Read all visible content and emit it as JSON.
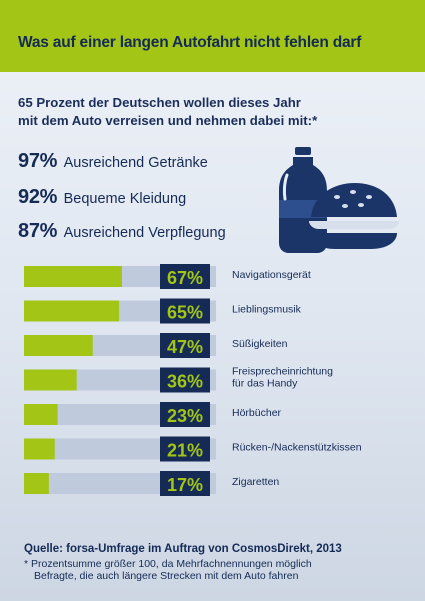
{
  "header": {
    "title": "Was auf einer langen Autofahrt nicht fehlen darf"
  },
  "intro": {
    "text": "65 Prozent der Deutschen wollen dieses Jahr mit dem Auto verreisen und nehmen dabei mit:*"
  },
  "top_items": [
    {
      "pct": "97%",
      "label": "Ausreichend Getränke"
    },
    {
      "pct": "92%",
      "label": "Bequeme Kleidung"
    },
    {
      "pct": "87%",
      "label": "Ausreichend Verpflegung"
    }
  ],
  "chart_data": {
    "type": "bar",
    "orientation": "horizontal",
    "categories": [
      "Navigationsgerät",
      "Lieblingsmusik",
      "Süßigkeiten",
      "Freisprecheinrichtung für das Handy",
      "Hörbücher",
      "Rücken-/Nackenstützkissen",
      "Zigaretten"
    ],
    "category_lines": [
      [
        "Navigationsgerät"
      ],
      [
        "Lieblingsmusik"
      ],
      [
        "Süßigkeiten"
      ],
      [
        "Freisprecheinrichtung",
        "für das Handy"
      ],
      [
        "Hörbücher"
      ],
      [
        "Rücken-/Nackenstützkissen"
      ],
      [
        "Zigaretten"
      ]
    ],
    "values": [
      67,
      65,
      47,
      36,
      23,
      21,
      17
    ],
    "value_labels": [
      "67%",
      "65%",
      "47%",
      "36%",
      "23%",
      "21%",
      "17%"
    ],
    "xlim": [
      0,
      100
    ],
    "colors": {
      "bar": "#a2c516",
      "track": "#bfcbdd",
      "value_box": "#152b56",
      "value_text": "#a2c516"
    }
  },
  "footer": {
    "source": "Quelle: forsa-Umfrage im Auftrag von CosmosDirekt, 2013",
    "note_line1": "* Prozentsumme größer 100, da Mehrfachnennungen möglich",
    "note_line2": "Befragte, die auch längere Strecken mit dem Auto fahren"
  }
}
